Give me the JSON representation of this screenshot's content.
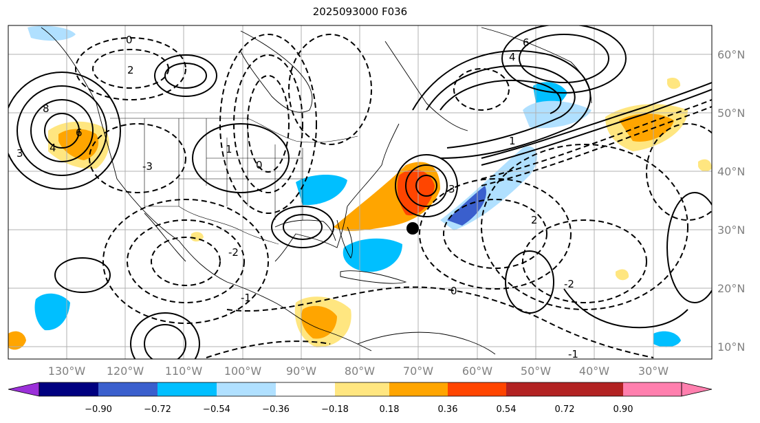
{
  "title": "2025093000 F036",
  "map": {
    "projection": "cylindrical",
    "extent": {
      "lon": [
        -140,
        -20
      ],
      "lat": [
        8,
        65
      ]
    },
    "lon_ticks": [
      "130°W",
      "120°W",
      "110°W",
      "100°W",
      "90°W",
      "80°W",
      "70°W",
      "60°W",
      "50°W",
      "40°W",
      "30°W"
    ],
    "lat_ticks": [
      "60°N",
      "50°N",
      "40°N",
      "30°N",
      "20°N",
      "10°N"
    ],
    "marker": {
      "name": "storm-center",
      "lon": -70.5,
      "lat": 30.0,
      "color": "#000000"
    },
    "contour_labels": [
      "0",
      "2",
      "4",
      "6",
      "8",
      "3",
      "1",
      "-1",
      "-2",
      "-3",
      "0",
      "6",
      "4",
      "3",
      "2",
      "-2",
      "-1",
      "1",
      "0"
    ]
  },
  "colorbar": {
    "ticks": [
      "−0.90",
      "−0.72",
      "−0.54",
      "−0.36",
      "−0.18",
      "0.18",
      "0.36",
      "0.54",
      "0.72",
      "0.90"
    ],
    "colors": [
      "#9b30d9",
      "#000080",
      "#3a5fcd",
      "#00bfff",
      "#b0e0ff",
      "#ffffff",
      "#ffe680",
      "#ffa500",
      "#ff4500",
      "#b22222",
      "#ff7fae"
    ]
  }
}
